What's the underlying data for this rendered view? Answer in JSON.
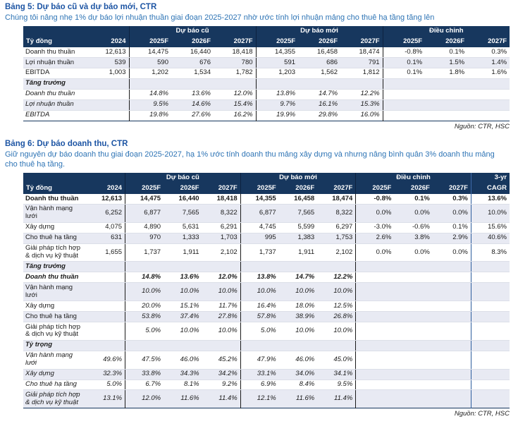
{
  "colors": {
    "header_bg": "#17375E",
    "row_alt_bg": "#E8EAF3",
    "title_color": "#1D55A4",
    "subtitle_color": "#2E74B5",
    "group_separator": "#1A1A1A",
    "cagr_separator": "#2E5D9E"
  },
  "table5": {
    "title": "Bảng 5: Dự báo cũ và dự báo mới, CTR",
    "subtitle": "Chúng tôi nâng nhẹ 1% dự báo lợi nhuận thuần giai đoạn 2025-2027 nhờ ước tính lợi nhuận mảng cho thuê hạ tầng tăng lên",
    "unit_label": "Tỷ đồng",
    "groups": [
      {
        "label": "",
        "span": 2
      },
      {
        "label": "Dự báo cũ",
        "span": 3
      },
      {
        "label": "Dự báo mới",
        "span": 3
      },
      {
        "label": "Điều chỉnh",
        "span": 3
      }
    ],
    "col_headers": [
      "2024",
      "2025F",
      "2026F",
      "2027F",
      "2025F",
      "2026F",
      "2027F",
      "2025F",
      "2026F",
      "2027F"
    ],
    "rows": [
      {
        "label": "Doanh thu thuần",
        "style": "plain",
        "cells": [
          "12,613",
          "14,475",
          "16,440",
          "18,418",
          "14,355",
          "16,458",
          "18,474",
          "-0.8%",
          "0.1%",
          "0.3%"
        ]
      },
      {
        "label": "Lợi nhuận thuần",
        "style": "plain",
        "cells": [
          "539",
          "590",
          "676",
          "780",
          "591",
          "686",
          "791",
          "0.1%",
          "1.5%",
          "1.4%"
        ]
      },
      {
        "label": "EBITDA",
        "style": "plain",
        "cells": [
          "1,003",
          "1,202",
          "1,534",
          "1,782",
          "1,203",
          "1,562",
          "1,812",
          "0.1%",
          "1.8%",
          "1.6%"
        ]
      },
      {
        "label": "Tăng trưởng",
        "style": "section",
        "cells": [
          "",
          "",
          "",
          "",
          "",
          "",
          "",
          "",
          "",
          ""
        ]
      },
      {
        "label": "Doanh thu thuần",
        "style": "growth",
        "cells": [
          "",
          "14.8%",
          "13.6%",
          "12.0%",
          "13.8%",
          "14.7%",
          "12.2%",
          "",
          "",
          ""
        ]
      },
      {
        "label": "Lợi nhuận thuần",
        "style": "growth",
        "cells": [
          "",
          "9.5%",
          "14.6%",
          "15.4%",
          "9.7%",
          "16.1%",
          "15.3%",
          "",
          "",
          ""
        ]
      },
      {
        "label": "EBITDA",
        "style": "growth",
        "cells": [
          "",
          "19.8%",
          "27.6%",
          "16.2%",
          "19.9%",
          "29.8%",
          "16.0%",
          "",
          "",
          ""
        ]
      }
    ],
    "source": "Nguồn: CTR, HSC"
  },
  "table6": {
    "title": "Bảng 6: Dự báo doanh thu, CTR",
    "subtitle": "Giữ nguyên dự báo doanh thu giai đoạn 2025-2027, hạ 1% ước tính doanh thu mảng xây dựng và nhưng nâng bình quân 3% doanh thu mảng cho thuê hạ tầng.",
    "unit_label": "Tỷ đồng",
    "groups": [
      {
        "label": "",
        "span": 2
      },
      {
        "label": "Dự báo cũ",
        "span": 3
      },
      {
        "label": "Dự báo mới",
        "span": 3
      },
      {
        "label": "Điều chỉnh",
        "span": 3
      },
      {
        "label": "3-yr",
        "span": 1
      }
    ],
    "col_headers": [
      "2024",
      "2025F",
      "2026F",
      "2027F",
      "2025F",
      "2026F",
      "2027F",
      "2025F",
      "2026F",
      "2027F",
      "CAGR"
    ],
    "rows": [
      {
        "label": "Doanh thu thuần",
        "style": "bold",
        "cells": [
          "12,613",
          "14,475",
          "16,440",
          "18,418",
          "14,355",
          "16,458",
          "18,474",
          "-0.8%",
          "0.1%",
          "0.3%",
          "13.6%"
        ]
      },
      {
        "label": "Vận hành mạng lưới",
        "style": "plain",
        "cells": [
          "6,252",
          "6,877",
          "7,565",
          "8,322",
          "6,877",
          "7,565",
          "8,322",
          "0.0%",
          "0.0%",
          "0.0%",
          "10.0%"
        ]
      },
      {
        "label": "Xây dựng",
        "style": "plain",
        "cells": [
          "4,075",
          "4,890",
          "5,631",
          "6,291",
          "4,745",
          "5,599",
          "6,297",
          "-3.0%",
          "-0.6%",
          "0.1%",
          "15.6%"
        ]
      },
      {
        "label": "Cho thuê hạ tầng",
        "style": "plain",
        "cells": [
          "631",
          "970",
          "1,333",
          "1,703",
          "995",
          "1,383",
          "1,753",
          "2.6%",
          "3.8%",
          "2.9%",
          "40.6%"
        ]
      },
      {
        "label": "Giải pháp tích hợp & dịch vụ kỹ thuật",
        "style": "plain",
        "cells": [
          "1,655",
          "1,737",
          "1,911",
          "2,102",
          "1,737",
          "1,911",
          "2,102",
          "0.0%",
          "0.0%",
          "0.0%",
          "8.3%"
        ]
      },
      {
        "label": "Tăng trưởng",
        "style": "section",
        "cells": [
          "",
          "",
          "",
          "",
          "",
          "",
          "",
          "",
          "",
          "",
          ""
        ]
      },
      {
        "label": "Doanh thu thuần",
        "style": "growth-bold",
        "cells": [
          "",
          "14.8%",
          "13.6%",
          "12.0%",
          "13.8%",
          "14.7%",
          "12.2%",
          "",
          "",
          "",
          ""
        ]
      },
      {
        "label": "Vận hành mạng lưới",
        "style": "growth-plainlabel",
        "cells": [
          "",
          "10.0%",
          "10.0%",
          "10.0%",
          "10.0%",
          "10.0%",
          "10.0%",
          "",
          "",
          "",
          ""
        ]
      },
      {
        "label": "Xây dựng",
        "style": "growth-plainlabel",
        "cells": [
          "",
          "20.0%",
          "15.1%",
          "11.7%",
          "16.4%",
          "18.0%",
          "12.5%",
          "",
          "",
          "",
          ""
        ]
      },
      {
        "label": "Cho thuê hạ tầng",
        "style": "growth-plainlabel",
        "cells": [
          "",
          "53.8%",
          "37.4%",
          "27.8%",
          "57.8%",
          "38.9%",
          "26.8%",
          "",
          "",
          "",
          ""
        ]
      },
      {
        "label": "Giải pháp tích hợp & dịch vụ kỹ thuật",
        "style": "growth-plainlabel",
        "cells": [
          "",
          "5.0%",
          "10.0%",
          "10.0%",
          "5.0%",
          "10.0%",
          "10.0%",
          "",
          "",
          "",
          ""
        ]
      },
      {
        "label": "Tỷ trọng",
        "style": "section",
        "cells": [
          "",
          "",
          "",
          "",
          "",
          "",
          "",
          "",
          "",
          "",
          ""
        ]
      },
      {
        "label": "Vận hành mạng lưới",
        "style": "share",
        "cells": [
          "49.6%",
          "47.5%",
          "46.0%",
          "45.2%",
          "47.9%",
          "46.0%",
          "45.0%",
          "",
          "",
          "",
          ""
        ]
      },
      {
        "label": "Xây dựng",
        "style": "share",
        "cells": [
          "32.3%",
          "33.8%",
          "34.3%",
          "34.2%",
          "33.1%",
          "34.0%",
          "34.1%",
          "",
          "",
          "",
          ""
        ]
      },
      {
        "label": "Cho thuê hạ tầng",
        "style": "share",
        "cells": [
          "5.0%",
          "6.7%",
          "8.1%",
          "9.2%",
          "6.9%",
          "8.4%",
          "9.5%",
          "",
          "",
          "",
          ""
        ]
      },
      {
        "label": "Giải pháp tích hợp & dịch vụ kỹ thuật",
        "style": "share",
        "cells": [
          "13.1%",
          "12.0%",
          "11.6%",
          "11.4%",
          "12.1%",
          "11.6%",
          "11.4%",
          "",
          "",
          "",
          ""
        ]
      }
    ],
    "source": "Nguồn: CTR, HSC"
  }
}
